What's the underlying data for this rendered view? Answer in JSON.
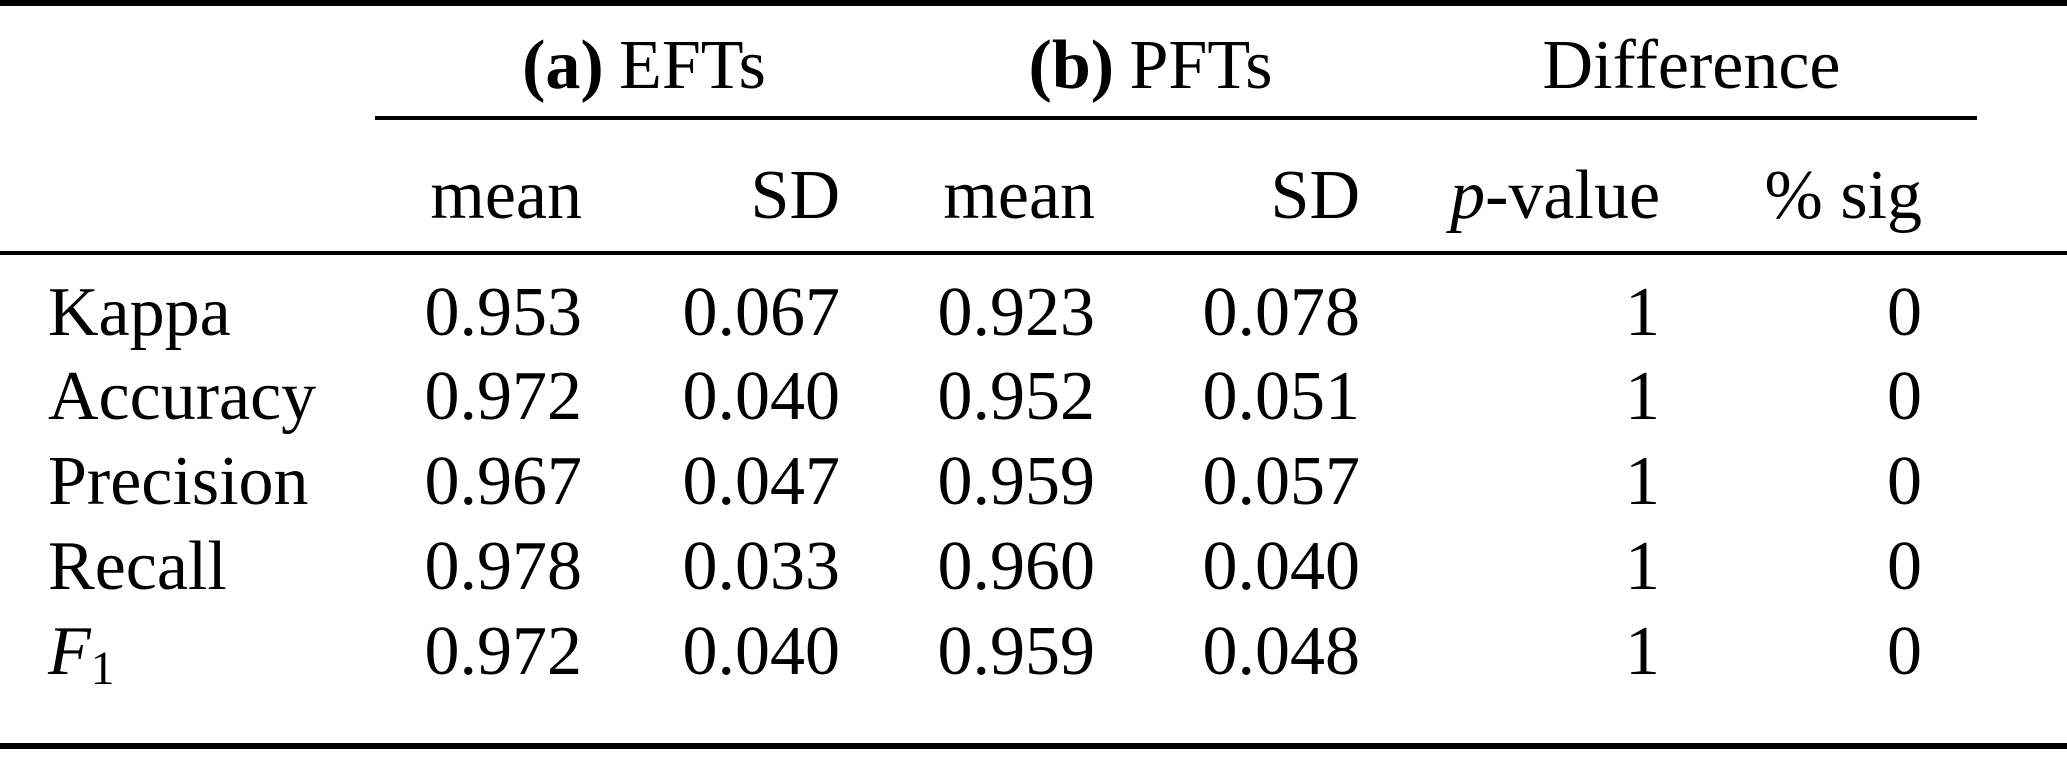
{
  "table": {
    "colors": {
      "text": "#000000",
      "background": "#ffffff",
      "rule": "#000000"
    },
    "groups": {
      "efts": {
        "prefix": "(a)",
        "name": "EFTs"
      },
      "pfts": {
        "prefix": "(b)",
        "name": "PFTs"
      },
      "difference": "Difference"
    },
    "subheaders": {
      "efts_mean": "mean",
      "efts_sd": "SD",
      "pfts_mean": "mean",
      "pfts_sd": "SD",
      "p_value_italic": "p",
      "p_value_rest": "-value",
      "pct_sig": "% sig"
    },
    "rows": [
      {
        "label": "Kappa",
        "efts_mean": "0.953",
        "efts_sd": "0.067",
        "pfts_mean": "0.923",
        "pfts_sd": "0.078",
        "p_value": "1",
        "pct_sig": "0"
      },
      {
        "label": "Accuracy",
        "efts_mean": "0.972",
        "efts_sd": "0.040",
        "pfts_mean": "0.952",
        "pfts_sd": "0.051",
        "p_value": "1",
        "pct_sig": "0"
      },
      {
        "label": "Precision",
        "efts_mean": "0.967",
        "efts_sd": "0.047",
        "pfts_mean": "0.959",
        "pfts_sd": "0.057",
        "p_value": "1",
        "pct_sig": "0"
      },
      {
        "label": "Recall",
        "efts_mean": "0.978",
        "efts_sd": "0.033",
        "pfts_mean": "0.960",
        "pfts_sd": "0.040",
        "p_value": "1",
        "pct_sig": "0"
      },
      {
        "label_base": "F",
        "label_sub": "1",
        "efts_mean": "0.972",
        "efts_sd": "0.040",
        "pfts_mean": "0.959",
        "pfts_sd": "0.048",
        "p_value": "1",
        "pct_sig": "0"
      }
    ]
  }
}
